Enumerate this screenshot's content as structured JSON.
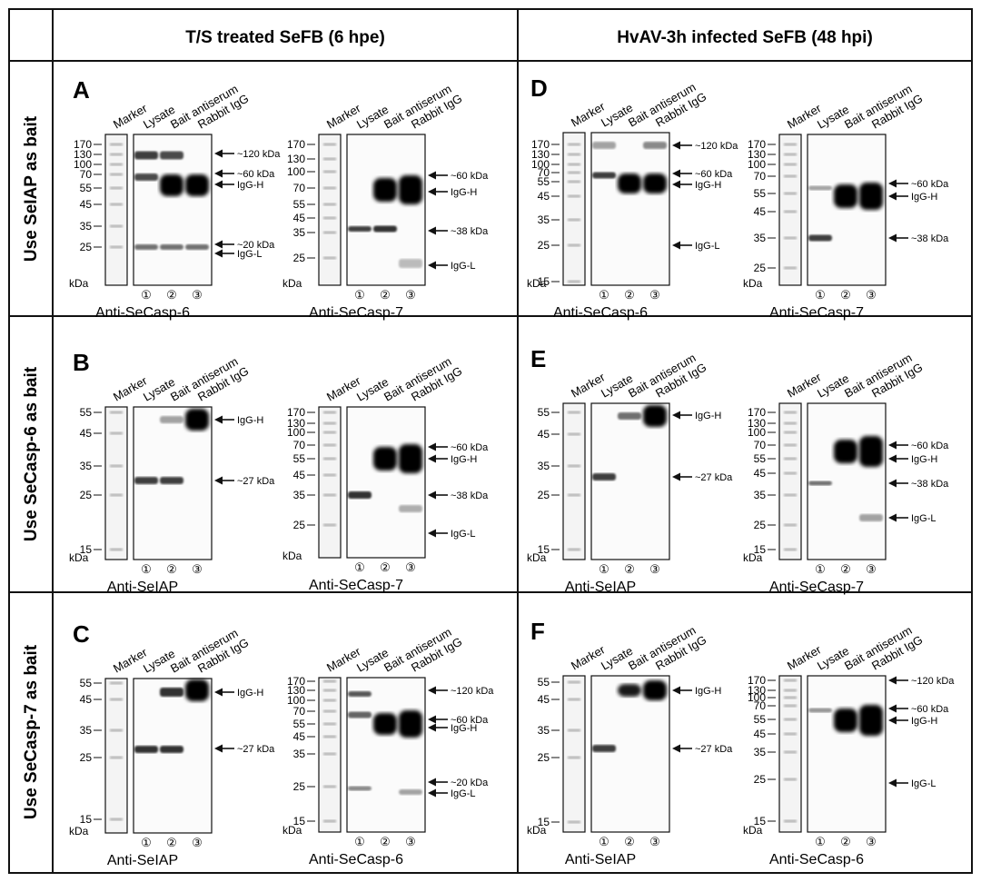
{
  "figure": {
    "column_headers": [
      "T/S treated SeFB (6 hpe)",
      "HvAV-3h infected SeFB (48 hpi)"
    ],
    "row_headers": [
      "Use SeIAP as bait",
      "Use SeCasp-6 as bait",
      "Use SeCasp-7 as bait"
    ],
    "lane_headers": [
      "Marker",
      "Lysate",
      "Bait antiserum",
      "Rabbit IgG"
    ],
    "lane_numbers": [
      "①",
      "②",
      "③"
    ],
    "kda_label": "kDa",
    "blots": [
      {
        "panel": "A",
        "antibody": "Anti-SeCasp-6",
        "markers": [
          "170",
          "130",
          "100",
          "70",
          "55",
          "45",
          "35",
          "25"
        ],
        "annotations": [
          "~120 kDa",
          "~60 kDa",
          "IgG-H",
          "~20 kDa",
          "IgG-L"
        ]
      },
      {
        "panel": "",
        "antibody": "Anti-SeCasp-7",
        "markers": [
          "170",
          "130",
          "100",
          "70",
          "55",
          "45",
          "35",
          "25"
        ],
        "annotations": [
          "~60 kDa",
          "IgG-H",
          "~38 kDa",
          "IgG-L"
        ]
      },
      {
        "panel": "D",
        "antibody": "Anti-SeCasp-6",
        "markers": [
          "170",
          "130",
          "100",
          "70",
          "55",
          "45",
          "35",
          "25",
          "15"
        ],
        "annotations": [
          "~120 kDa",
          "~60 kDa",
          "IgG-H",
          "IgG-L"
        ]
      },
      {
        "panel": "",
        "antibody": "Anti-SeCasp-7",
        "markers": [
          "170",
          "130",
          "100",
          "70",
          "55",
          "45",
          "35",
          "25"
        ],
        "annotations": [
          "~60 kDa",
          "IgG-H",
          "~38 kDa"
        ]
      },
      {
        "panel": "B",
        "antibody": "Anti-SeIAP",
        "markers": [
          "55",
          "45",
          "35",
          "25",
          "15"
        ],
        "annotations": [
          "IgG-H",
          "~27 kDa"
        ]
      },
      {
        "panel": "",
        "antibody": "Anti-SeCasp-7",
        "markers": [
          "170",
          "130",
          "100",
          "70",
          "55",
          "45",
          "35",
          "25"
        ],
        "annotations": [
          "~60 kDa",
          "IgG-H",
          "~38 kDa",
          "IgG-L"
        ]
      },
      {
        "panel": "E",
        "antibody": "Anti-SeIAP",
        "markers": [
          "55",
          "45",
          "35",
          "25",
          "15"
        ],
        "annotations": [
          "IgG-H",
          "~27 kDa"
        ]
      },
      {
        "panel": "",
        "antibody": "Anti-SeCasp-7",
        "markers": [
          "170",
          "130",
          "100",
          "70",
          "55",
          "45",
          "35",
          "25",
          "15"
        ],
        "annotations": [
          "~60 kDa",
          "IgG-H",
          "~38 kDa",
          "IgG-L"
        ]
      },
      {
        "panel": "C",
        "antibody": "Anti-SeIAP",
        "markers": [
          "55",
          "45",
          "35",
          "25",
          "15"
        ],
        "annotations": [
          "IgG-H",
          "~27 kDa"
        ]
      },
      {
        "panel": "",
        "antibody": "Anti-SeCasp-6",
        "markers": [
          "170",
          "130",
          "100",
          "70",
          "55",
          "45",
          "35",
          "25",
          "15"
        ],
        "annotations": [
          "~120 kDa",
          "~60 kDa",
          "IgG-H",
          "~20 kDa",
          "IgG-L"
        ]
      },
      {
        "panel": "F",
        "antibody": "Anti-SeIAP",
        "markers": [
          "55",
          "45",
          "35",
          "25",
          "15"
        ],
        "annotations": [
          "IgG-H",
          "~27 kDa"
        ]
      },
      {
        "panel": "",
        "antibody": "Anti-SeCasp-6",
        "markers": [
          "170",
          "130",
          "100",
          "70",
          "55",
          "45",
          "35",
          "25",
          "15"
        ],
        "annotations": [
          "~120 kDa",
          "~60 kDa",
          "IgG-H",
          "IgG-L"
        ]
      }
    ]
  }
}
